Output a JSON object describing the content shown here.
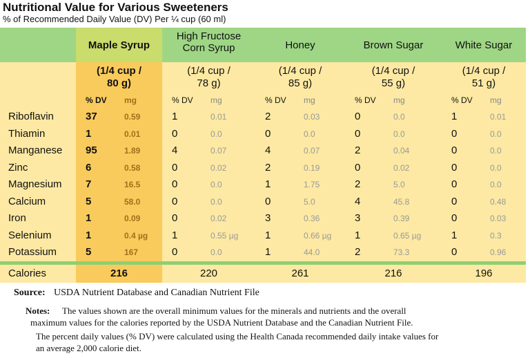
{
  "header": {
    "title": "Nutritional Value for Various Sweeteners",
    "subtitle": "% of Recommended Daily Value (DV) Per ¼  cup (60 ml)"
  },
  "table": {
    "columns": [
      {
        "name": "Maple Syrup",
        "serving": [
          "(1/4 cup /",
          "80 g)"
        ],
        "dv_label": "% DV",
        "mg_label": "mg"
      },
      {
        "name": "High Fructose Corn Syrup",
        "serving": [
          "(1/4 cup /",
          "78 g)"
        ],
        "dv_label": "% DV",
        "mg_label": "mg"
      },
      {
        "name": "Honey",
        "serving": [
          "(1/4 cup /",
          "85 g)"
        ],
        "dv_label": "% DV",
        "mg_label": "mg"
      },
      {
        "name": "Brown Sugar",
        "serving": [
          "(1/4 cup /",
          "55 g)"
        ],
        "dv_label": "% DV",
        "mg_label": "mg"
      },
      {
        "name": "White Sugar",
        "serving": [
          "(1/4 cup /",
          "51 g)"
        ],
        "dv_label": "% DV",
        "mg_label": "mg"
      }
    ],
    "rows": [
      {
        "nutrient": "Riboflavin",
        "cells": [
          [
            "37",
            "0.59"
          ],
          [
            "1",
            "0.01"
          ],
          [
            "2",
            "0.03"
          ],
          [
            "0",
            "0.0"
          ],
          [
            "1",
            "0.01"
          ]
        ]
      },
      {
        "nutrient": "Thiamin",
        "cells": [
          [
            "1",
            "0.01"
          ],
          [
            "0",
            "0.0"
          ],
          [
            "0",
            "0.0"
          ],
          [
            "0",
            "0.0"
          ],
          [
            "0",
            "0.0"
          ]
        ]
      },
      {
        "nutrient": "Manganese",
        "cells": [
          [
            "95",
            "1.89"
          ],
          [
            "4",
            "0.07"
          ],
          [
            "4",
            "0.07"
          ],
          [
            "2",
            "0.04"
          ],
          [
            "0",
            "0.0"
          ]
        ]
      },
      {
        "nutrient": "Zinc",
        "cells": [
          [
            "6",
            "0.58"
          ],
          [
            "0",
            "0.02"
          ],
          [
            "2",
            "0.19"
          ],
          [
            "0",
            "0.02"
          ],
          [
            "0",
            "0.0"
          ]
        ]
      },
      {
        "nutrient": "Magnesium",
        "cells": [
          [
            "7",
            "16.5"
          ],
          [
            "0",
            "0.0"
          ],
          [
            "1",
            "1.75"
          ],
          [
            "2",
            "5.0"
          ],
          [
            "0",
            "0.0"
          ]
        ]
      },
      {
        "nutrient": "Calcium",
        "cells": [
          [
            "5",
            "58.0"
          ],
          [
            "0",
            "0.0"
          ],
          [
            "0",
            "5.0"
          ],
          [
            "4",
            "45.8"
          ],
          [
            "0",
            "0.48"
          ]
        ]
      },
      {
        "nutrient": "Iron",
        "cells": [
          [
            "1",
            "0.09"
          ],
          [
            "0",
            "0.02"
          ],
          [
            "3",
            "0.36"
          ],
          [
            "3",
            "0.39"
          ],
          [
            "0",
            "0.03"
          ]
        ]
      },
      {
        "nutrient": "Selenium",
        "cells": [
          [
            "1",
            "0.4 µg"
          ],
          [
            "1",
            "0.55 µg"
          ],
          [
            "1",
            "0.66 µg"
          ],
          [
            "1",
            "0.65 µg"
          ],
          [
            "1",
            "0.3"
          ]
        ]
      },
      {
        "nutrient": "Potassium",
        "cells": [
          [
            "5",
            "167"
          ],
          [
            "0",
            "0.0"
          ],
          [
            "1",
            "44.0"
          ],
          [
            "2",
            "73.3"
          ],
          [
            "0",
            "0.96"
          ]
        ]
      }
    ],
    "calories": {
      "label": "Calories",
      "values": [
        "216",
        "220",
        "261",
        "216",
        "196"
      ]
    }
  },
  "source": {
    "label": "Source:",
    "text": "USDA Nutrient Database and Canadian Nutrient File"
  },
  "notes": {
    "label": "Notes:",
    "lines": [
      "The values shown are the overall minimum values for the minerals and nutrients and the overall",
      "maximum values for the calories reported by the USDA Nutrient Database and the Canadian Nutrient File.",
      "The percent daily values (% DV) were calculated using the Health Canada recommended daily intake values for",
      "an average 2,000 calorie diet."
    ]
  }
}
